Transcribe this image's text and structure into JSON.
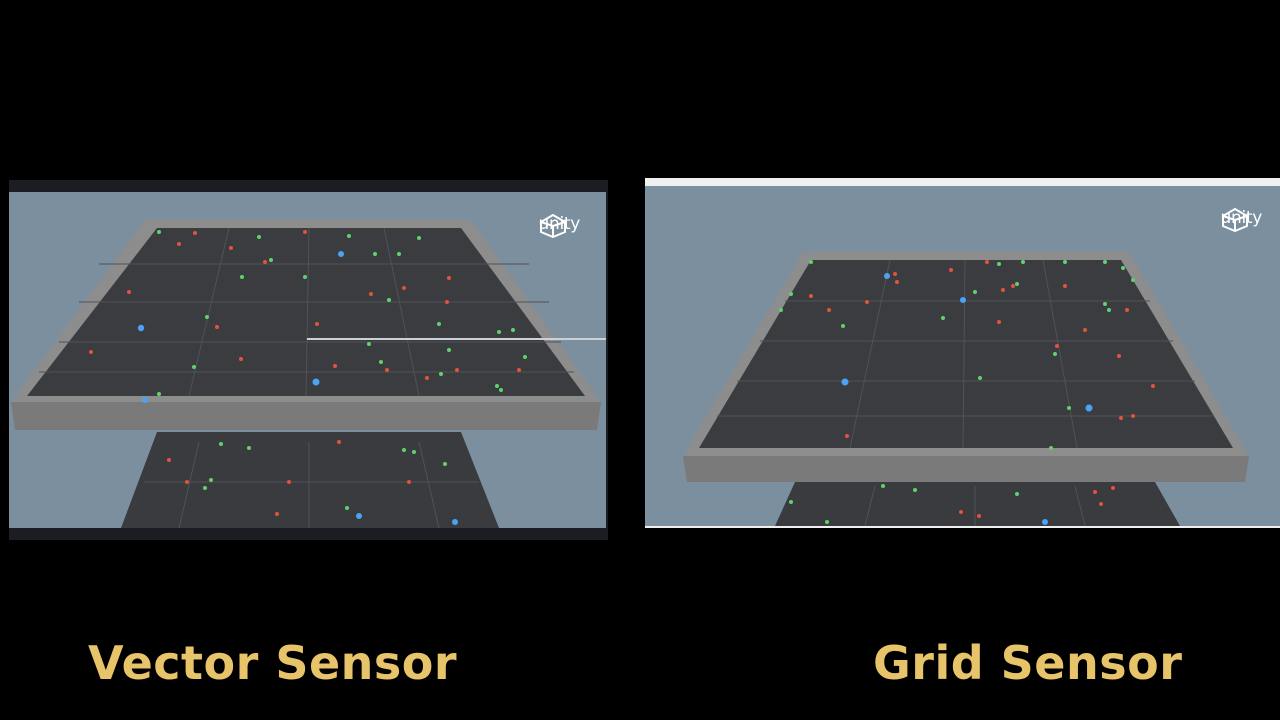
{
  "panels": {
    "left": {
      "caption": "Vector Sensor",
      "logo_text": "unity"
    },
    "right": {
      "caption": "Grid Sensor",
      "logo_text": "unity"
    }
  },
  "colors": {
    "sky": "#7b8f9e",
    "floor": "#3b3c40",
    "wall": "#8c8c8c",
    "caption": "#e7c36a",
    "food_green": "#5fd36b",
    "food_red": "#e2533f",
    "agent_blue": "#4aa3f5"
  },
  "icons": {
    "logo": "unity-cube-icon"
  }
}
